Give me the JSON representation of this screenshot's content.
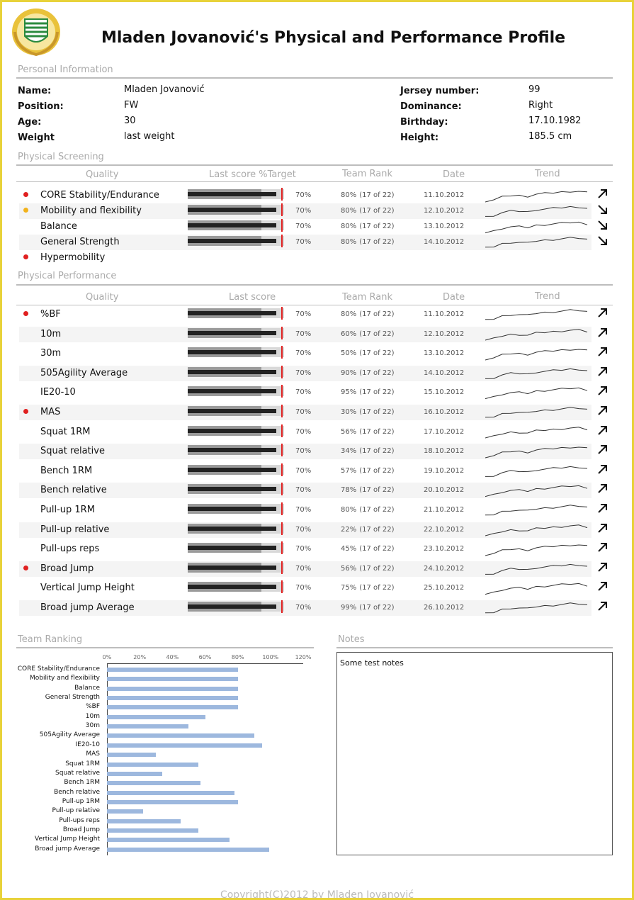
{
  "title": "Mladen Jovanović's Physical and Performance Profile",
  "colors": {
    "border": "#e8d23a",
    "target": "#e02020",
    "dot_red": "#e02020",
    "dot_yellow": "#f2b21b",
    "rank_bar": "#9db8de"
  },
  "personal": {
    "section_title": "Personal Information",
    "left": [
      {
        "label": "Name:",
        "value": "Mladen Jovanović"
      },
      {
        "label": "Position:",
        "value": "FW"
      },
      {
        "label": "Age:",
        "value": "30"
      },
      {
        "label": "Weight",
        "value": "last weight"
      }
    ],
    "right": [
      {
        "label": "Jersey number:",
        "value": "99"
      },
      {
        "label": "Dominance:",
        "value": "Right"
      },
      {
        "label": "Birthday:",
        "value": "17.10.1982"
      },
      {
        "label": "Height:",
        "value": "185.5 cm"
      }
    ]
  },
  "screening": {
    "section_title": "Physical Screening",
    "headers": {
      "quality": "Quality",
      "score": "Last score %Target",
      "rank": "Team Rank",
      "date": "Date",
      "trend": "Trend"
    },
    "rows": [
      {
        "label": "CORE Stability/Endurance",
        "dot": "red",
        "pct": "70%",
        "rank": "80%",
        "rank_sub": "(17 of 22)",
        "date": "11.10.2012",
        "arrow": "up"
      },
      {
        "label": "Mobility and flexibility",
        "dot": "yellow",
        "pct": "70%",
        "rank": "80%",
        "rank_sub": "(17 of 22)",
        "date": "12.10.2012",
        "arrow": "down"
      },
      {
        "label": "Balance",
        "dot": "",
        "pct": "70%",
        "rank": "80%",
        "rank_sub": "(17 of 22)",
        "date": "13.10.2012",
        "arrow": "down"
      },
      {
        "label": "General Strength",
        "dot": "",
        "pct": "70%",
        "rank": "80%",
        "rank_sub": "(17 of 22)",
        "date": "14.10.2012",
        "arrow": "down"
      },
      {
        "label": "Hypermobility",
        "dot": "red"
      }
    ]
  },
  "performance": {
    "section_title": "Physical Performance",
    "headers": {
      "quality": "Quality",
      "score": "Last score",
      "rank": "Team Rank",
      "date": "Date",
      "trend": "Trend"
    },
    "rows": [
      {
        "label": "%BF",
        "dot": "red",
        "pct": "70%",
        "rank": "80%",
        "rank_sub": "(17 of 22)",
        "date": "11.10.2012"
      },
      {
        "label": "10m",
        "dot": "",
        "pct": "70%",
        "rank": "60%",
        "rank_sub": "(17 of 22)",
        "date": "12.10.2012"
      },
      {
        "label": "30m",
        "dot": "",
        "pct": "70%",
        "rank": "50%",
        "rank_sub": "(17 of 22)",
        "date": "13.10.2012"
      },
      {
        "label": "505Agility Average",
        "dot": "",
        "pct": "70%",
        "rank": "90%",
        "rank_sub": "(17 of 22)",
        "date": "14.10.2012"
      },
      {
        "label": "IE20-10",
        "dot": "",
        "pct": "70%",
        "rank": "95%",
        "rank_sub": "(17 of 22)",
        "date": "15.10.2012"
      },
      {
        "label": "MAS",
        "dot": "red",
        "pct": "70%",
        "rank": "30%",
        "rank_sub": "(17 of 22)",
        "date": "16.10.2012"
      },
      {
        "label": "Squat 1RM",
        "dot": "",
        "pct": "70%",
        "rank": "56%",
        "rank_sub": "(17 of 22)",
        "date": "17.10.2012"
      },
      {
        "label": "Squat relative",
        "dot": "",
        "pct": "70%",
        "rank": "34%",
        "rank_sub": "(17 of 22)",
        "date": "18.10.2012"
      },
      {
        "label": "Bench 1RM",
        "dot": "",
        "pct": "70%",
        "rank": "57%",
        "rank_sub": "(17 of 22)",
        "date": "19.10.2012"
      },
      {
        "label": "Bench relative",
        "dot": "",
        "pct": "70%",
        "rank": "78%",
        "rank_sub": "(17 of 22)",
        "date": "20.10.2012"
      },
      {
        "label": "Pull-up 1RM",
        "dot": "",
        "pct": "70%",
        "rank": "80%",
        "rank_sub": "(17 of 22)",
        "date": "21.10.2012"
      },
      {
        "label": "Pull-up relative",
        "dot": "",
        "pct": "70%",
        "rank": "22%",
        "rank_sub": "(17 of 22)",
        "date": "22.10.2012"
      },
      {
        "label": "Pull-ups reps",
        "dot": "",
        "pct": "70%",
        "rank": "45%",
        "rank_sub": "(17 of 22)",
        "date": "23.10.2012"
      },
      {
        "label": "Broad Jump",
        "dot": "red",
        "pct": "70%",
        "rank": "56%",
        "rank_sub": "(17 of 22)",
        "date": "24.10.2012"
      },
      {
        "label": "Vertical Jump Height",
        "dot": "",
        "pct": "70%",
        "rank": "75%",
        "rank_sub": "(17 of 22)",
        "date": "25.10.2012"
      },
      {
        "label": "Broad jump Average",
        "dot": "",
        "pct": "70%",
        "rank": "99%",
        "rank_sub": "(17 of 22)",
        "date": "26.10.2012"
      }
    ]
  },
  "team_ranking": {
    "section_title": "Team Ranking",
    "chart_data": {
      "type": "bar",
      "orientation": "horizontal",
      "categories": [
        "CORE Stability/Endurance",
        "Mobility and flexibility",
        "Balance",
        "General Strength",
        "%BF",
        "10m",
        "30m",
        "505Agility Average",
        "IE20-10",
        "MAS",
        "Squat 1RM",
        "Squat relative",
        "Bench 1RM",
        "Bench relative",
        "Pull-up 1RM",
        "Pull-up relative",
        "Pull-ups reps",
        "Broad Jump",
        "Vertical Jump Height",
        "Broad jump Average"
      ],
      "values": [
        80,
        80,
        80,
        80,
        80,
        60,
        50,
        90,
        95,
        30,
        56,
        34,
        57,
        78,
        80,
        22,
        45,
        56,
        75,
        99
      ],
      "xlim": [
        0,
        120
      ],
      "ticks": [
        "0%",
        "20%",
        "40%",
        "60%",
        "80%",
        "100%",
        "120%"
      ],
      "grid": false,
      "title": "",
      "xlabel": "",
      "ylabel": ""
    }
  },
  "notes": {
    "section_title": "Notes",
    "text": "Some test notes"
  },
  "footer": "Copyright(C)2012 by Mladen Jovanović"
}
